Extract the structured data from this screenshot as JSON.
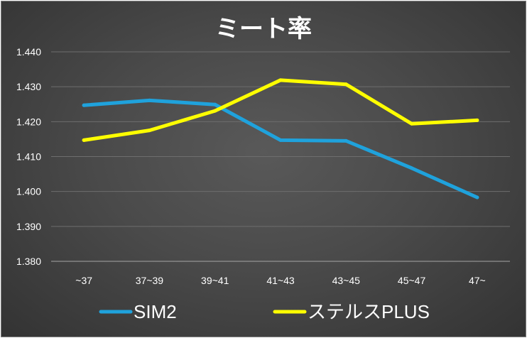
{
  "chart_data": {
    "type": "line",
    "title": "ミート率",
    "categories": [
      "~37",
      "37~39",
      "39~41",
      "41~43",
      "43~45",
      "45~47",
      "47~"
    ],
    "ylim": [
      1.38,
      1.44
    ],
    "yticks": [
      "1.380",
      "1.390",
      "1.400",
      "1.410",
      "1.420",
      "1.430",
      "1.440"
    ],
    "grid": true,
    "legend_position": "bottom",
    "series": [
      {
        "name": "SIM2",
        "color": "#1fa2dc",
        "values": [
          1.4247,
          1.4261,
          1.4249,
          1.4147,
          1.4145,
          1.4067,
          1.3983
        ]
      },
      {
        "name": "ステルスPLUS",
        "color": "#ffff00",
        "values": [
          1.4147,
          1.4175,
          1.4231,
          1.4319,
          1.4307,
          1.4194,
          1.4204
        ]
      }
    ]
  }
}
